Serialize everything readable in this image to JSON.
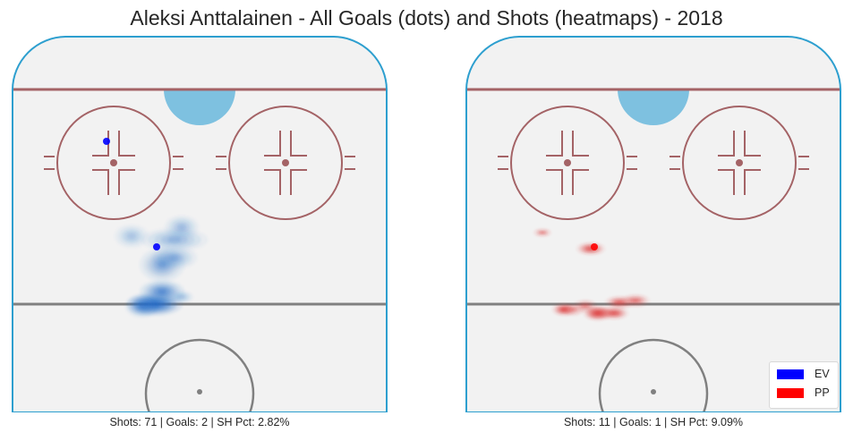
{
  "title": "Aleksi Anttalainen - All Goals (dots) and Shots (heatmaps) - 2018",
  "colors": {
    "ice": "#f2f2f2",
    "boards": "#2d9fcf",
    "red_line": "#a46366",
    "blue_line": "#808080",
    "crease": "#7ec1e0",
    "EV": "#0000ff",
    "PP": "#ff0000"
  },
  "legend": [
    {
      "label": "EV",
      "color": "#0000ff"
    },
    {
      "label": "PP",
      "color": "#ff0000"
    }
  ],
  "chart_data": [
    {
      "type": "heatmap",
      "name": "EV",
      "caption": "Shots: 71 | Goals: 2 | SH Pct: 2.82%",
      "stats": {
        "shots": 71,
        "goals": 2,
        "sh_pct": "2.82%"
      },
      "goals": [
        {
          "x": 53,
          "y": 59
        },
        {
          "x": 81,
          "y": 118
        }
      ],
      "shot_density": [
        {
          "x": 80,
          "y": 150,
          "sx": 5,
          "sy": 2,
          "w": 1.0
        },
        {
          "x": 84,
          "y": 143,
          "sx": 4,
          "sy": 2,
          "w": 0.6
        },
        {
          "x": 73,
          "y": 151,
          "sx": 3,
          "sy": 2,
          "w": 0.5
        },
        {
          "x": 84,
          "y": 128,
          "sx": 4,
          "sy": 3,
          "w": 0.4
        },
        {
          "x": 91,
          "y": 124,
          "sx": 4,
          "sy": 2,
          "w": 0.3
        },
        {
          "x": 91,
          "y": 114,
          "sx": 6,
          "sy": 2,
          "w": 0.3
        },
        {
          "x": 95,
          "y": 107,
          "sx": 3,
          "sy": 2,
          "w": 0.25
        },
        {
          "x": 67,
          "y": 112,
          "sx": 3,
          "sy": 2,
          "w": 0.2
        },
        {
          "x": 95,
          "y": 146,
          "sx": 2,
          "sy": 1,
          "w": 0.2
        }
      ]
    },
    {
      "type": "heatmap",
      "name": "PP",
      "caption": "Shots: 11 | Goals: 1 | SH Pct: 9.09%",
      "stats": {
        "shots": 11,
        "goals": 1,
        "sh_pct": "9.09%"
      },
      "goals": [
        {
          "x": 72,
          "y": 118
        }
      ],
      "shot_density": [
        {
          "x": 74,
          "y": 155,
          "sx": 2.5,
          "sy": 1.2,
          "w": 1.0
        },
        {
          "x": 67,
          "y": 151,
          "sx": 2,
          "sy": 1,
          "w": 0.4
        },
        {
          "x": 83,
          "y": 155,
          "sx": 2.5,
          "sy": 1,
          "w": 0.7
        },
        {
          "x": 55,
          "y": 153,
          "sx": 2,
          "sy": 1,
          "w": 0.75
        },
        {
          "x": 70,
          "y": 119,
          "sx": 2.5,
          "sy": 1,
          "w": 0.7
        },
        {
          "x": 86,
          "y": 149,
          "sx": 2.5,
          "sy": 1,
          "w": 0.6
        },
        {
          "x": 60,
          "y": 153,
          "sx": 2,
          "sy": 1,
          "w": 0.3
        },
        {
          "x": 95,
          "y": 148,
          "sx": 2.5,
          "sy": 1,
          "w": 0.5
        },
        {
          "x": 43,
          "y": 110,
          "sx": 1.5,
          "sy": 0.6,
          "w": 0.4
        }
      ]
    }
  ]
}
